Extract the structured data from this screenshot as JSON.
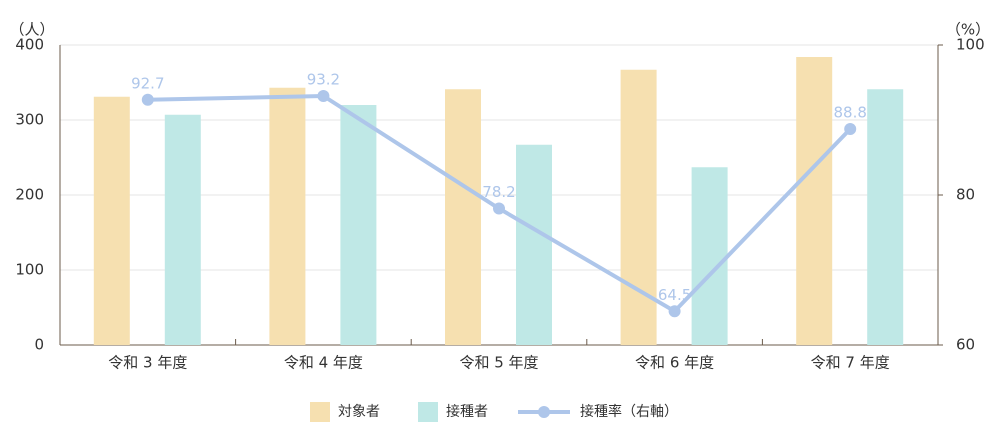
{
  "chart_data": {
    "type": "bar_line",
    "y_label": "（人）",
    "y2_label": "（%）",
    "categories": [
      "令和 3 年度",
      "令和 4 年度",
      "令和 5 年度",
      "令和 6 年度",
      "令和 7 年度"
    ],
    "series": [
      {
        "name": "対象者",
        "color": "#f6e0b0",
        "type": "bar",
        "values": [
          331,
          343,
          341,
          367,
          384
        ]
      },
      {
        "name": "接種者",
        "color": "#bfe8e6",
        "type": "bar",
        "values": [
          307,
          320,
          267,
          237,
          341
        ]
      },
      {
        "name": "接種率（右軸）",
        "color": "#aec6ea",
        "type": "line",
        "axis": "y2",
        "values": [
          92.7,
          93.2,
          78.2,
          64.5,
          88.8
        ]
      }
    ],
    "ylim": [
      0,
      400
    ],
    "yticks": [
      0,
      100,
      200,
      300,
      400
    ],
    "y2lim": [
      60,
      100
    ],
    "y2ticks": [
      60,
      80,
      100
    ],
    "grid": true
  }
}
